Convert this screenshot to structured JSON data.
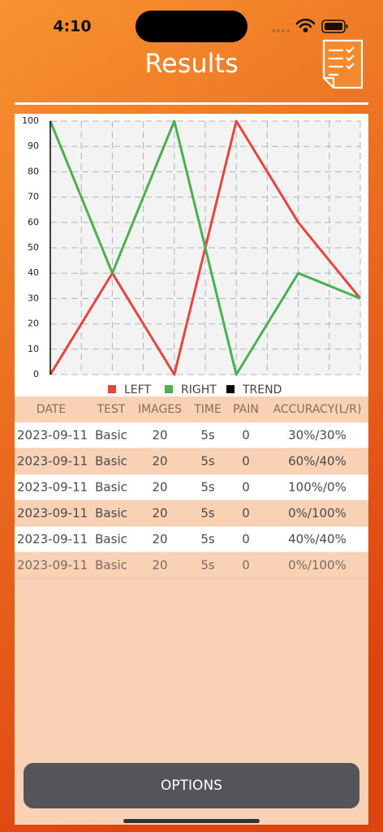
{
  "status_bar": {
    "time": "4:10"
  },
  "header": {
    "title": "Results"
  },
  "chart_data": {
    "type": "line",
    "categories": [
      null,
      null,
      null,
      null,
      null,
      null
    ],
    "series": [
      {
        "name": "LEFT",
        "color": "#e8453c",
        "values": [
          0,
          40,
          0,
          100,
          60,
          30
        ]
      },
      {
        "name": "RIGHT",
        "color": "#4caf50",
        "values": [
          100,
          40,
          100,
          0,
          40,
          30
        ]
      },
      {
        "name": "TREND",
        "color": "#000000",
        "values": [
          null,
          null,
          null,
          null,
          null,
          null
        ]
      }
    ],
    "ylim": [
      0,
      100
    ],
    "yticks": [
      0,
      10,
      20,
      30,
      40,
      50,
      60,
      70,
      80,
      90,
      100
    ],
    "grid": true,
    "legend": "bottom"
  },
  "table": {
    "header": [
      "DATE",
      "TEST",
      "IMAGES",
      "TIME",
      "PAIN",
      "ACCURACY(L/R)"
    ],
    "rows": [
      [
        "2023-09-11",
        "Basic",
        "20",
        "5s",
        "0",
        "30%/30%"
      ],
      [
        "2023-09-11",
        "Basic",
        "20",
        "5s",
        "0",
        "60%/40%"
      ],
      [
        "2023-09-11",
        "Basic",
        "20",
        "5s",
        "0",
        "100%/0%"
      ],
      [
        "2023-09-11",
        "Basic",
        "20",
        "5s",
        "0",
        "0%/100%"
      ],
      [
        "2023-09-11",
        "Basic",
        "20",
        "5s",
        "0",
        "40%/40%"
      ],
      [
        "2023-09-11",
        "Basic",
        "20",
        "5s",
        "0",
        "0%/100%"
      ]
    ]
  },
  "button": {
    "label": "OPTIONS"
  }
}
